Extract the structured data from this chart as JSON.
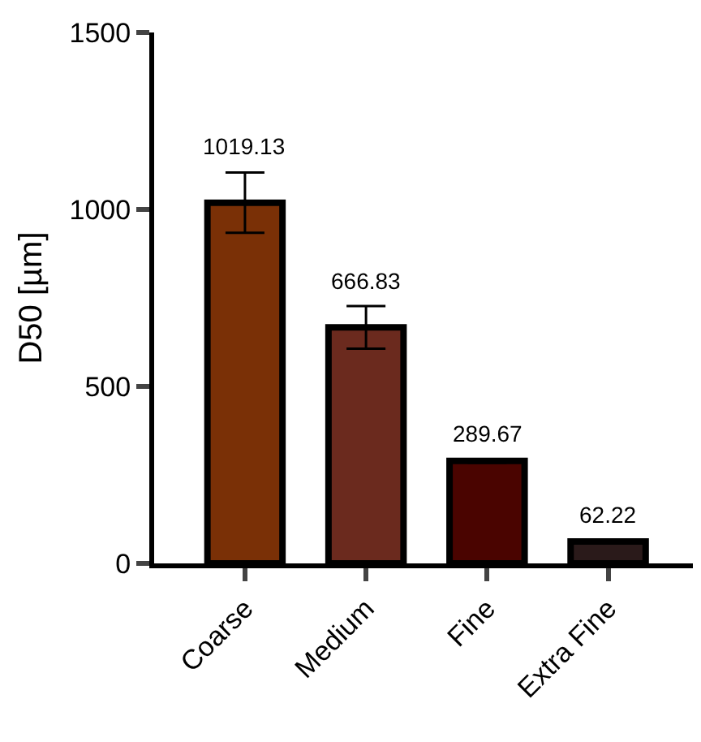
{
  "chart_data": {
    "type": "bar",
    "ylabel": "D50 [µm]",
    "categories": [
      "Coarse",
      "Medium",
      "Fine",
      "Extra Fine"
    ],
    "values": [
      1019.13,
      666.83,
      289.67,
      62.22
    ],
    "errors": [
      85,
      60,
      5,
      3
    ],
    "colors": [
      "#7a3006",
      "#6b2a1e",
      "#4a0400",
      "#2a1a1a"
    ],
    "ylim": [
      0,
      1500
    ],
    "yticks": [
      0,
      500,
      1000,
      1500
    ],
    "data_labels": true
  }
}
